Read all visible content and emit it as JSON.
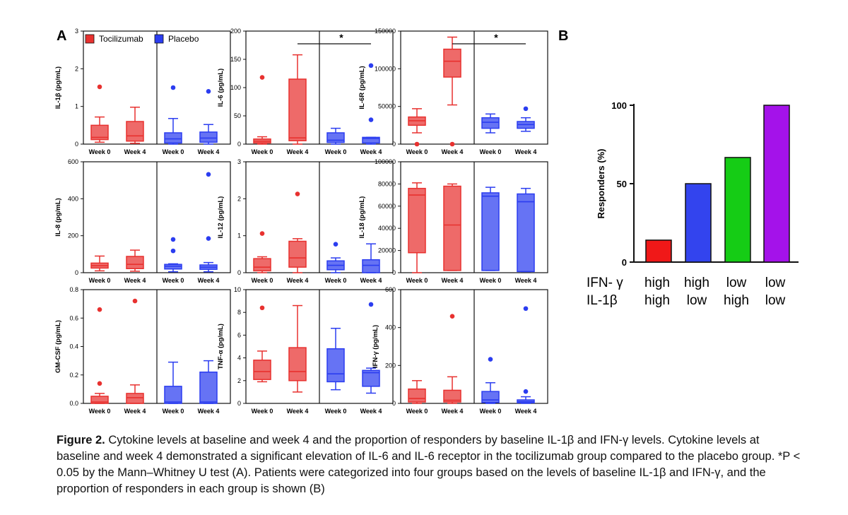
{
  "panel_labels": {
    "a": "A",
    "b": "B"
  },
  "legend": {
    "tocilizumab": "Tocilizumab",
    "placebo": "Placebo",
    "tocilizumab_color": "#e8312f",
    "placebo_color": "#2b3df0"
  },
  "week_labels": [
    "Week 0",
    "Week 4"
  ],
  "chart_data": [
    {
      "type": "box",
      "id": "il1b",
      "ylabel": "IL-1β (pg/mL)",
      "ylim": [
        0,
        3
      ],
      "yticks": [
        "0",
        "1",
        "2",
        "3"
      ],
      "significance": "",
      "groups": [
        {
          "group": "Tocilizumab",
          "week": "Week 0",
          "min": 0.05,
          "q1": 0.12,
          "median": 0.18,
          "q3": 0.5,
          "max": 0.72,
          "outliers": [
            1.52
          ]
        },
        {
          "group": "Tocilizumab",
          "week": "Week 4",
          "min": 0.02,
          "q1": 0.08,
          "median": 0.22,
          "q3": 0.6,
          "max": 0.98,
          "outliers": []
        },
        {
          "group": "Placebo",
          "week": "Week 0",
          "min": 0.0,
          "q1": 0.03,
          "median": 0.14,
          "q3": 0.3,
          "max": 0.68,
          "outliers": [
            1.5
          ]
        },
        {
          "group": "Placebo",
          "week": "Week 4",
          "min": 0.0,
          "q1": 0.05,
          "median": 0.16,
          "q3": 0.32,
          "max": 0.52,
          "outliers": [
            1.4
          ]
        }
      ]
    },
    {
      "type": "box",
      "id": "il6",
      "ylabel": "IL-6 (pg/mL)",
      "ylim": [
        0,
        200
      ],
      "yticks": [
        "0",
        "50",
        "100",
        "150",
        "200"
      ],
      "significance": "*",
      "groups": [
        {
          "group": "Tocilizumab",
          "week": "Week 0",
          "min": 0,
          "q1": 2,
          "median": 5,
          "q3": 9,
          "max": 13,
          "outliers": [
            118
          ]
        },
        {
          "group": "Tocilizumab",
          "week": "Week 4",
          "min": 0,
          "q1": 6,
          "median": 11,
          "q3": 115,
          "max": 158,
          "outliers": []
        },
        {
          "group": "Placebo",
          "week": "Week 0",
          "min": 0,
          "q1": 3,
          "median": 7,
          "q3": 20,
          "max": 28,
          "outliers": []
        },
        {
          "group": "Placebo",
          "week": "Week 4",
          "min": 0,
          "q1": 2,
          "median": 10,
          "q3": 12,
          "max": 12,
          "outliers": [
            43,
            139
          ]
        }
      ]
    },
    {
      "type": "box",
      "id": "il6r",
      "ylabel": "IL-6R (pg/mL)",
      "ylim": [
        0,
        150000
      ],
      "yticks": [
        "0",
        "50000",
        "100000",
        "150000"
      ],
      "significance": "*",
      "groups": [
        {
          "group": "Tocilizumab",
          "week": "Week 0",
          "min": 15000,
          "q1": 25000,
          "median": 31000,
          "q3": 36000,
          "max": 47000,
          "outliers": [
            0
          ]
        },
        {
          "group": "Tocilizumab",
          "week": "Week 4",
          "min": 52000,
          "q1": 89000,
          "median": 110000,
          "q3": 126000,
          "max": 142000,
          "outliers": [
            0
          ]
        },
        {
          "group": "Placebo",
          "week": "Week 0",
          "min": 15000,
          "q1": 21000,
          "median": 29000,
          "q3": 35000,
          "max": 40000,
          "outliers": []
        },
        {
          "group": "Placebo",
          "week": "Week 4",
          "min": 17000,
          "q1": 21000,
          "median": 26000,
          "q3": 30000,
          "max": 35000,
          "outliers": [
            47000
          ]
        }
      ]
    },
    {
      "type": "box",
      "id": "il8",
      "ylabel": "IL-8 (pg/mL)",
      "ylim": [
        0,
        600
      ],
      "yticks": [
        "0",
        "200",
        "400",
        "600"
      ],
      "significance": "",
      "groups": [
        {
          "group": "Tocilizumab",
          "week": "Week 0",
          "min": 10,
          "q1": 25,
          "median": 38,
          "q3": 52,
          "max": 90,
          "outliers": []
        },
        {
          "group": "Tocilizumab",
          "week": "Week 4",
          "min": 8,
          "q1": 22,
          "median": 45,
          "q3": 88,
          "max": 122,
          "outliers": []
        },
        {
          "group": "Placebo",
          "week": "Week 0",
          "min": 5,
          "q1": 20,
          "median": 35,
          "q3": 45,
          "max": 48,
          "outliers": [
            118,
            180
          ]
        },
        {
          "group": "Placebo",
          "week": "Week 4",
          "min": 5,
          "q1": 18,
          "median": 30,
          "q3": 42,
          "max": 55,
          "outliers": [
            185,
            532
          ]
        }
      ]
    },
    {
      "type": "box",
      "id": "il12",
      "ylabel": "IL-12 (pg/mL)",
      "ylim": [
        0,
        3
      ],
      "yticks": [
        "0",
        "1",
        "2",
        "3"
      ],
      "significance": "",
      "groups": [
        {
          "group": "Tocilizumab",
          "week": "Week 0",
          "min": 0.0,
          "q1": 0.05,
          "median": 0.15,
          "q3": 0.38,
          "max": 0.43,
          "outliers": [
            1.06
          ]
        },
        {
          "group": "Tocilizumab",
          "week": "Week 4",
          "min": 0.0,
          "q1": 0.15,
          "median": 0.4,
          "q3": 0.85,
          "max": 0.92,
          "outliers": [
            2.13
          ]
        },
        {
          "group": "Placebo",
          "week": "Week 0",
          "min": 0.0,
          "q1": 0.08,
          "median": 0.2,
          "q3": 0.32,
          "max": 0.4,
          "outliers": [
            0.77
          ]
        },
        {
          "group": "Placebo",
          "week": "Week 4",
          "min": 0.0,
          "q1": 0.0,
          "median": 0.2,
          "q3": 0.35,
          "max": 0.78,
          "outliers": []
        }
      ]
    },
    {
      "type": "box",
      "id": "il18",
      "ylabel": "IL-18 (pg/mL)",
      "ylim": [
        0,
        100000
      ],
      "yticks": [
        "0",
        "20000",
        "40000",
        "60000",
        "80000",
        "100000"
      ],
      "significance": "",
      "groups": [
        {
          "group": "Tocilizumab",
          "week": "Week 0",
          "min": 0,
          "q1": 18000,
          "median": 70000,
          "q3": 76000,
          "max": 81000,
          "outliers": []
        },
        {
          "group": "Tocilizumab",
          "week": "Week 4",
          "min": 2000,
          "q1": 2000,
          "median": 43000,
          "q3": 78000,
          "max": 80000,
          "outliers": []
        },
        {
          "group": "Placebo",
          "week": "Week 0",
          "min": 2000,
          "q1": 2000,
          "median": 69000,
          "q3": 72000,
          "max": 77000,
          "outliers": []
        },
        {
          "group": "Placebo",
          "week": "Week 4",
          "min": 1000,
          "q1": 1000,
          "median": 64000,
          "q3": 71000,
          "max": 76000,
          "outliers": []
        }
      ]
    },
    {
      "type": "box",
      "id": "gmcsf",
      "ylabel": "GM-CSF (pg/mL)",
      "ylim": [
        0,
        0.8
      ],
      "yticks": [
        "0.0",
        "0.2",
        "0.4",
        "0.6",
        "0.8"
      ],
      "significance": "",
      "groups": [
        {
          "group": "Tocilizumab",
          "week": "Week 0",
          "min": 0.0,
          "q1": 0.0,
          "median": 0.01,
          "q3": 0.05,
          "max": 0.07,
          "outliers": [
            0.14,
            0.66
          ]
        },
        {
          "group": "Tocilizumab",
          "week": "Week 4",
          "min": 0.0,
          "q1": 0.0,
          "median": 0.04,
          "q3": 0.07,
          "max": 0.13,
          "outliers": [
            0.72
          ]
        },
        {
          "group": "Placebo",
          "week": "Week 0",
          "min": 0.0,
          "q1": 0.0,
          "median": 0.01,
          "q3": 0.12,
          "max": 0.29,
          "outliers": []
        },
        {
          "group": "Placebo",
          "week": "Week 4",
          "min": 0.0,
          "q1": 0.0,
          "median": 0.01,
          "q3": 0.22,
          "max": 0.3,
          "outliers": []
        }
      ]
    },
    {
      "type": "box",
      "id": "tnfa",
      "ylabel": "TNF-α (pg/mL)",
      "ylim": [
        0,
        10
      ],
      "yticks": [
        "0",
        "2",
        "4",
        "6",
        "8",
        "10"
      ],
      "significance": "",
      "groups": [
        {
          "group": "Tocilizumab",
          "week": "Week 0",
          "min": 1.9,
          "q1": 2.1,
          "median": 2.8,
          "q3": 3.8,
          "max": 4.6,
          "outliers": [
            8.4
          ]
        },
        {
          "group": "Tocilizumab",
          "week": "Week 4",
          "min": 1.0,
          "q1": 2.0,
          "median": 2.8,
          "q3": 4.9,
          "max": 8.6,
          "outliers": []
        },
        {
          "group": "Placebo",
          "week": "Week 0",
          "min": 1.2,
          "q1": 1.9,
          "median": 2.6,
          "q3": 4.8,
          "max": 6.6,
          "outliers": []
        },
        {
          "group": "Placebo",
          "week": "Week 4",
          "min": 0.9,
          "q1": 1.5,
          "median": 2.7,
          "q3": 2.9,
          "max": 3.1,
          "outliers": [
            8.7
          ]
        }
      ]
    },
    {
      "type": "box",
      "id": "ifng",
      "ylabel": "IFN-γ (pg/mL)",
      "ylim": [
        0,
        650
      ],
      "yticks": [
        "0",
        "200",
        "400",
        "600"
      ],
      "significance": "",
      "groups": [
        {
          "group": "Tocilizumab",
          "week": "Week 0",
          "min": 0,
          "q1": 8,
          "median": 28,
          "q3": 82,
          "max": 130,
          "outliers": []
        },
        {
          "group": "Tocilizumab",
          "week": "Week 4",
          "min": 0,
          "q1": 8,
          "median": 18,
          "q3": 75,
          "max": 152,
          "outliers": [
            498
          ]
        },
        {
          "group": "Placebo",
          "week": "Week 0",
          "min": 0,
          "q1": 5,
          "median": 20,
          "q3": 68,
          "max": 118,
          "outliers": [
            252
          ]
        },
        {
          "group": "Placebo",
          "week": "Week 4",
          "min": 0,
          "q1": 3,
          "median": 10,
          "q3": 20,
          "max": 38,
          "outliers": [
            68,
            542
          ]
        }
      ]
    },
    {
      "type": "bar",
      "id": "responders",
      "ylabel": "Responders (%)",
      "ylim": [
        0,
        100
      ],
      "yticks": [
        "0",
        "50",
        "100"
      ],
      "row_labels": [
        "IFN- γ",
        "IL-1β"
      ],
      "categories": [
        {
          "ifng": "high",
          "il1b": "high",
          "color": "#f01818"
        },
        {
          "ifng": "high",
          "il1b": "low",
          "color": "#3344ee"
        },
        {
          "ifng": "low",
          "il1b": "high",
          "color": "#15cc15"
        },
        {
          "ifng": "low",
          "il1b": "low",
          "color": "#a412ea"
        }
      ],
      "values": [
        14,
        50,
        66.7,
        100
      ]
    }
  ],
  "caption": {
    "label": "Figure 2.",
    "text": " Cytokine levels at baseline and week 4 and the proportion of responders by baseline IL-1β and IFN-γ levels. Cytokine levels at baseline and week 4 demonstrated a significant elevation of IL-6 and IL-6 receptor in the tocilizumab group compared to the placebo group. *P < 0.05 by the Mann–Whitney U test (A). Patients were categorized into four groups based on the levels of baseline IL-1β and IFN-γ, and the proportion of responders in each group is shown (B)"
  }
}
